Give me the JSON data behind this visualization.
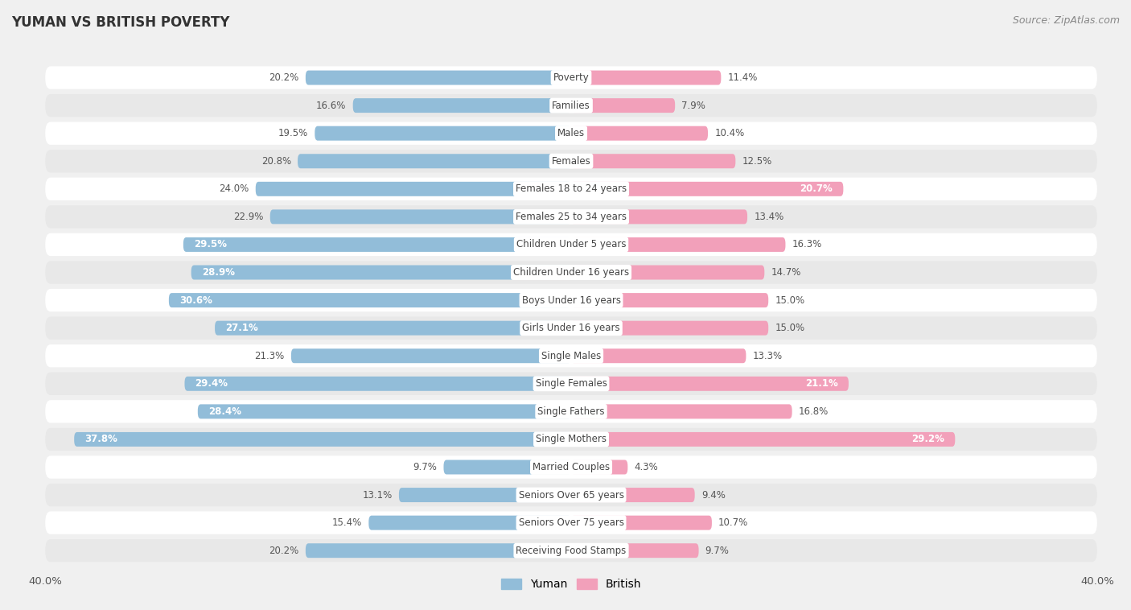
{
  "title": "YUMAN VS BRITISH POVERTY",
  "source": "Source: ZipAtlas.com",
  "categories": [
    "Poverty",
    "Families",
    "Males",
    "Females",
    "Females 18 to 24 years",
    "Females 25 to 34 years",
    "Children Under 5 years",
    "Children Under 16 years",
    "Boys Under 16 years",
    "Girls Under 16 years",
    "Single Males",
    "Single Females",
    "Single Fathers",
    "Single Mothers",
    "Married Couples",
    "Seniors Over 65 years",
    "Seniors Over 75 years",
    "Receiving Food Stamps"
  ],
  "yuman_values": [
    20.2,
    16.6,
    19.5,
    20.8,
    24.0,
    22.9,
    29.5,
    28.9,
    30.6,
    27.1,
    21.3,
    29.4,
    28.4,
    37.8,
    9.7,
    13.1,
    15.4,
    20.2
  ],
  "british_values": [
    11.4,
    7.9,
    10.4,
    12.5,
    20.7,
    13.4,
    16.3,
    14.7,
    15.0,
    15.0,
    13.3,
    21.1,
    16.8,
    29.2,
    4.3,
    9.4,
    10.7,
    9.7
  ],
  "yuman_color": "#92BDD9",
  "british_color": "#F2A0BA",
  "axis_limit": 40.0,
  "background_color": "#f0f0f0",
  "row_colors": [
    "#ffffff",
    "#e8e8e8"
  ],
  "label_fontsize": 8.5,
  "title_fontsize": 12,
  "source_fontsize": 9,
  "bar_height": 0.52,
  "inside_threshold_yuman": 25.0,
  "inside_threshold_british": 20.0
}
